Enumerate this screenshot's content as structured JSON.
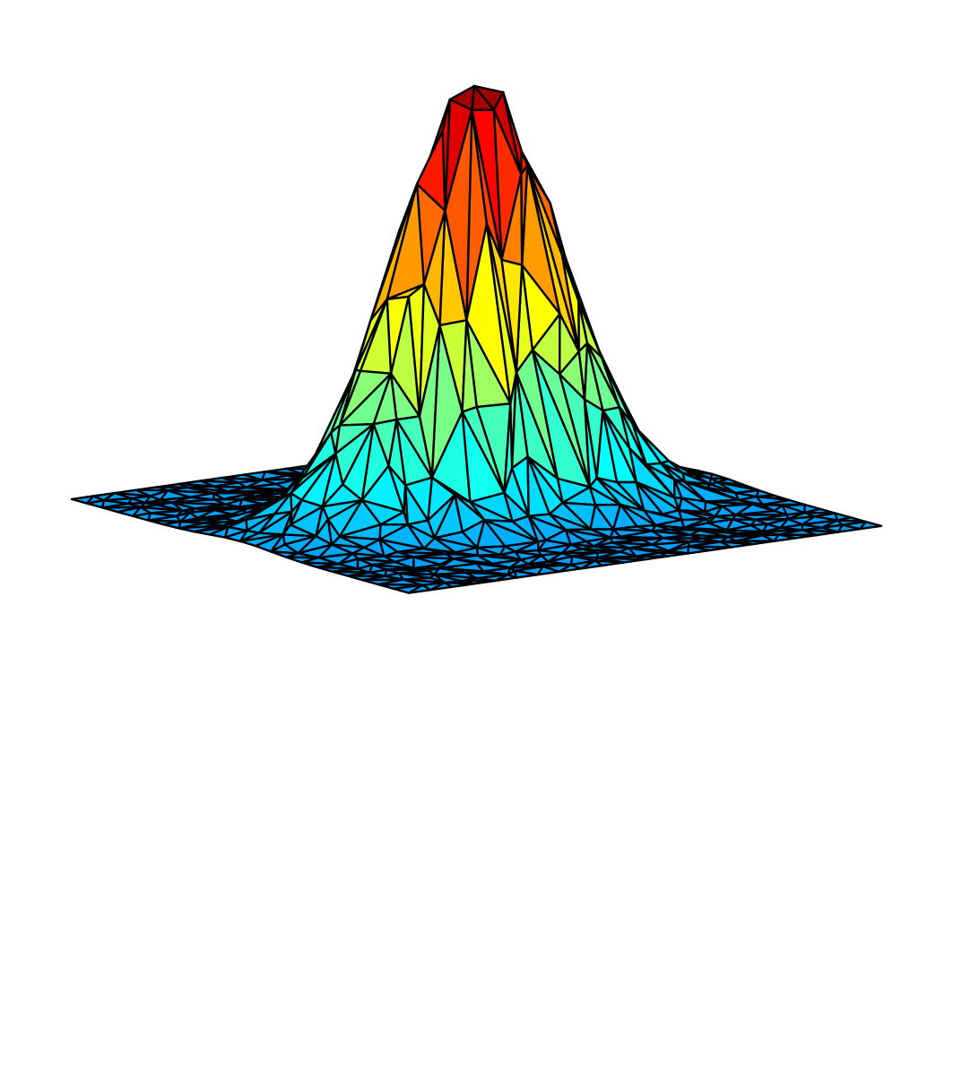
{
  "chart_data": {
    "type": "trisurf",
    "title": "",
    "xlabel": "",
    "ylabel": "",
    "zlabel": "",
    "axes_visible": false,
    "grid": false,
    "legend": "none",
    "colormap": "jet",
    "edge_color": "#000000",
    "surface": {
      "shape": "gaussian-peak",
      "z_range": [
        0,
        1
      ],
      "peak": {
        "x": 0.0,
        "y": 0.0,
        "z": 1.0
      },
      "spread_x": 1.0,
      "spread_y": 0.55,
      "x_range": [
        -3,
        3
      ],
      "y_range": [
        -3,
        3
      ],
      "triangulation": "scattered-irregular"
    }
  },
  "colors": {
    "background": "#ffffff",
    "jet_stops": [
      "#00008f",
      "#0000ff",
      "#0080ff",
      "#00ffff",
      "#80ff80",
      "#ffff00",
      "#ff8000",
      "#ff0000",
      "#800000"
    ]
  }
}
